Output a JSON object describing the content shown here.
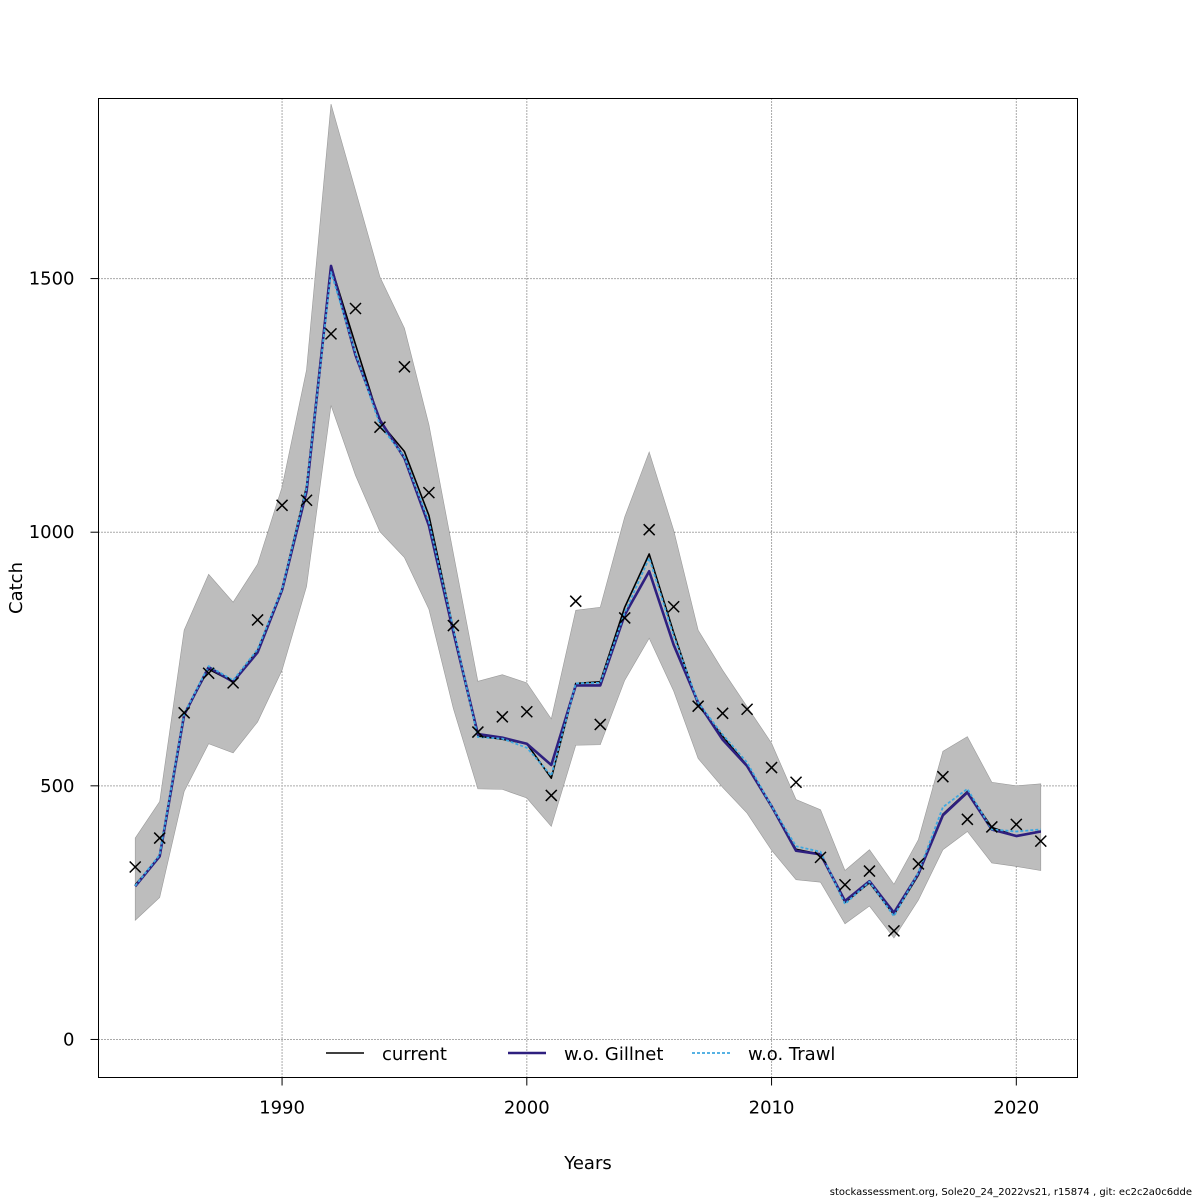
{
  "chart_data": {
    "type": "line",
    "xlabel": "Years",
    "ylabel": "Catch",
    "xlim": [
      1982.5,
      2022.5
    ],
    "ylim": [
      -75,
      1855
    ],
    "x_ticks": [
      1990,
      2000,
      2010,
      2020
    ],
    "y_ticks": [
      0,
      500,
      1000,
      1500
    ],
    "grid": true,
    "legend_position": "bottom-center",
    "years": [
      1984,
      1985,
      1986,
      1987,
      1988,
      1989,
      1990,
      1991,
      1992,
      1993,
      1994,
      1995,
      1996,
      1997,
      1998,
      1999,
      2000,
      2001,
      2002,
      2003,
      2004,
      2005,
      2006,
      2007,
      2008,
      2009,
      2010,
      2011,
      2012,
      2013,
      2014,
      2015,
      2016,
      2017,
      2018,
      2019,
      2020,
      2021
    ],
    "observed": [
      340,
      397,
      644,
      722,
      703,
      827,
      1053,
      1063,
      1391,
      1441,
      1207,
      1326,
      1078,
      816,
      606,
      636,
      646,
      481,
      864,
      621,
      831,
      1005,
      853,
      657,
      643,
      651,
      536,
      507,
      359,
      305,
      332,
      214,
      346,
      518,
      434,
      419,
      424,
      391
    ],
    "band": {
      "name": "uncertainty",
      "upper": [
        397,
        469,
        807,
        917,
        862,
        937,
        1089,
        1320,
        1844,
        1674,
        1503,
        1402,
        1212,
        958,
        706,
        719,
        703,
        632,
        846,
        852,
        1030,
        1158,
        1004,
        807,
        728,
        656,
        584,
        473,
        453,
        333,
        374,
        306,
        394,
        568,
        597,
        507,
        500,
        504
      ],
      "lower": [
        235,
        280,
        489,
        583,
        565,
        626,
        728,
        893,
        1250,
        1112,
        1001,
        950,
        848,
        652,
        494,
        493,
        476,
        420,
        580,
        581,
        708,
        791,
        687,
        554,
        497,
        446,
        373,
        315,
        310,
        228,
        263,
        200,
        275,
        374,
        410,
        348,
        341,
        333
      ]
    },
    "series": [
      {
        "name": "current",
        "color": "#000000",
        "dash": "",
        "width": 1.6,
        "values": [
          305,
          360,
          642,
          730,
          705,
          767,
          888,
          1090,
          1525,
          1370,
          1217,
          1159,
          1033,
          808,
          598,
          592,
          583,
          515,
          702,
          705,
          852,
          957,
          802,
          659,
          598,
          540,
          458,
          375,
          365,
          270,
          309,
          246,
          324,
          444,
          489,
          418,
          401,
          411
        ]
      },
      {
        "name": "w.o. Gillnet",
        "color": "#2e1f7f",
        "dash": "",
        "width": 2.6,
        "values": [
          302,
          361,
          640,
          734,
          705,
          763,
          886,
          1080,
          1525,
          1349,
          1221,
          1146,
          1013,
          803,
          602,
          595,
          583,
          541,
          698,
          698,
          837,
          923,
          778,
          664,
          591,
          539,
          460,
          372,
          365,
          273,
          312,
          250,
          327,
          442,
          487,
          414,
          401,
          410
        ]
      },
      {
        "name": "w.o. Trawl",
        "color": "#3fa8e0",
        "dash": "3,2",
        "width": 1.8,
        "values": [
          303,
          364,
          642,
          736,
          708,
          769,
          888,
          1087,
          1513,
          1353,
          1211,
          1148,
          1021,
          810,
          596,
          593,
          575,
          520,
          702,
          703,
          841,
          949,
          796,
          664,
          601,
          546,
          460,
          381,
          370,
          267,
          311,
          243,
          329,
          458,
          494,
          414,
          410,
          414
        ]
      }
    ]
  },
  "footer_text": "stockassessment.org, Sole20_24_2022vs21, r15874 , git: ec2c2a0c6dde"
}
